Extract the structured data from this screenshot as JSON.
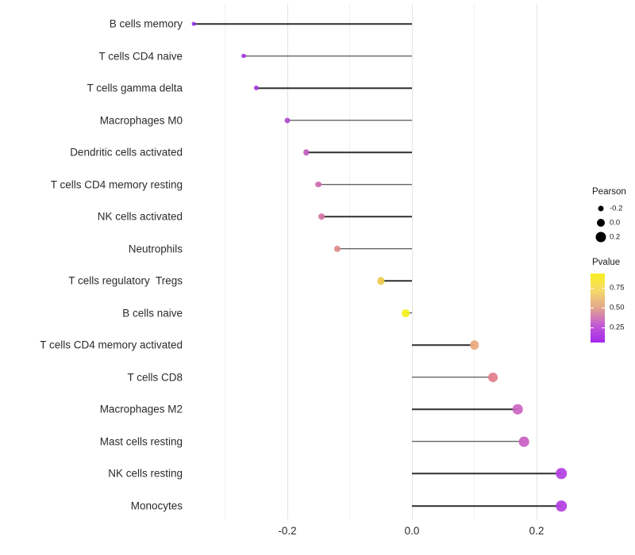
{
  "figure": {
    "background": "#ffffff"
  },
  "chart_data": {
    "type": "lollipop",
    "orientation": "horizontal",
    "title": "",
    "xlabel": "",
    "ylabel": "",
    "grid": "vertical-only",
    "baseline": 0.0,
    "x_axis": {
      "tick_labels": [
        "-0.2",
        "0.0",
        "0.2"
      ],
      "tick_values": [
        -0.2,
        0.0,
        0.2
      ],
      "minor_tick_values": [
        -0.3,
        -0.1,
        0.1
      ],
      "range": [
        -0.37,
        0.27
      ]
    },
    "categories": [
      "B cells memory",
      "T cells CD4 naive",
      "T cells gamma delta",
      "Macrophages M0",
      "Dendritic cells activated",
      "T cells CD4 memory resting",
      "NK cells activated",
      "Neutrophils",
      "T cells regulatory  Tregs",
      "B cells naive",
      "T cells CD4 memory activated",
      "T cells CD8",
      "Macrophages M2",
      "Mast cells resting",
      "NK cells resting",
      "Monocytes"
    ],
    "series": [
      {
        "name": "Pearson",
        "values": [
          -0.35,
          -0.27,
          -0.25,
          -0.2,
          -0.17,
          -0.15,
          -0.145,
          -0.12,
          -0.05,
          -0.01,
          0.1,
          0.13,
          0.17,
          0.18,
          0.24,
          0.24
        ]
      }
    ],
    "point_colors": [
      "#9130E2",
      "#A435E2",
      "#A83BDA",
      "#B24CCF",
      "#C45DBE",
      "#CF6BB1",
      "#D574A6",
      "#DE8B8B",
      "#EECB4A",
      "#F3F01B",
      "#EBAB7E",
      "#E37E8D",
      "#CC66C3",
      "#CA60C5",
      "#B441E3",
      "#B441E3"
    ],
    "stem_color": "#2e2e2e",
    "legend_position": "right"
  },
  "legend": {
    "pearson": {
      "title": "Pearson",
      "dot_color": "#000000",
      "items": [
        {
          "label": "-0.2",
          "value": -0.2
        },
        {
          "label": "0.0",
          "value": 0.0
        },
        {
          "label": "0.2",
          "value": 0.2
        }
      ]
    },
    "pvalue": {
      "title": "Pvalue",
      "tick_labels": [
        "0.75",
        "0.50",
        "0.25"
      ],
      "tick_values": [
        0.75,
        0.5,
        0.25
      ],
      "gradient_stops": [
        "#F9F021",
        "#F5D96B",
        "#E2A58D",
        "#C259D5",
        "#A327EA"
      ]
    }
  }
}
